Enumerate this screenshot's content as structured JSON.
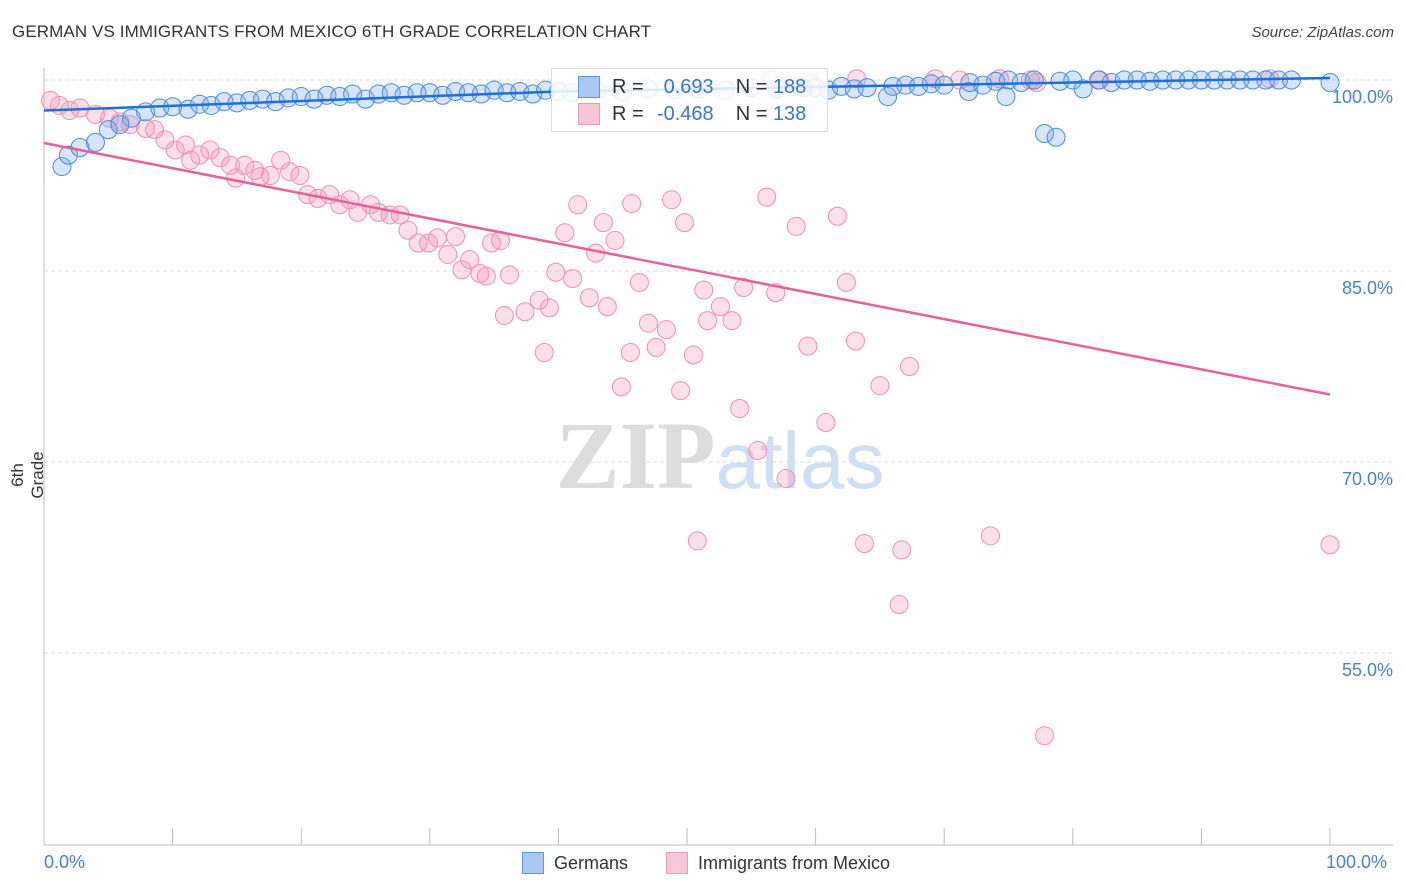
{
  "header": {
    "title": "GERMAN VS IMMIGRANTS FROM MEXICO 6TH GRADE CORRELATION CHART",
    "source": "Source: ZipAtlas.com"
  },
  "watermark": "ZIPatlas",
  "legend": {
    "rows": [
      {
        "r_label": "R =",
        "r": "0.693",
        "n_label": "N =",
        "n": "188"
      },
      {
        "r_label": "R =",
        "r": "-0.468",
        "n_label": "N =",
        "n": "138"
      }
    ]
  },
  "chart_data": {
    "type": "scatter",
    "title": "GERMAN VS IMMIGRANTS FROM MEXICO 6TH GRADE CORRELATION CHART",
    "xlabel": "",
    "ylabel": "6th Grade",
    "xlim": [
      0,
      100
    ],
    "ylim": [
      40,
      101.5
    ],
    "x_tick_labels": [
      "0.0%",
      "100.0%"
    ],
    "y_ticks": [
      100,
      85,
      70,
      55
    ],
    "y_tick_labels": [
      "100.0%",
      "85.0%",
      "70.0%",
      "55.0%"
    ],
    "grid": true,
    "legend_position": "bottom",
    "colors": {
      "Germans": "#4a8ae0",
      "Immigrants from Mexico": "#f08fb0",
      "blue_line": "#1f6fd6",
      "pink_line": "#e8609a",
      "tick_label": "#4a7fd6"
    },
    "series": [
      {
        "name": "Germans",
        "trend": [
          [
            0,
            97.6
          ],
          [
            40,
            99.1
          ],
          [
            100,
            100.6
          ]
        ],
        "points": [
          [
            1.4,
            93.2
          ],
          [
            1.9,
            94.1
          ],
          [
            2.8,
            94.7
          ],
          [
            4.0,
            95.1
          ],
          [
            5.0,
            96.1
          ],
          [
            5.9,
            96.5
          ],
          [
            6.8,
            97.0
          ],
          [
            7.9,
            97.5
          ],
          [
            9.0,
            97.8
          ],
          [
            10,
            97.9
          ],
          [
            11.2,
            97.7
          ],
          [
            12.1,
            98.1
          ],
          [
            13.0,
            98.0
          ],
          [
            14,
            98.3
          ],
          [
            15,
            98.2
          ],
          [
            16,
            98.4
          ],
          [
            17,
            98.5
          ],
          [
            18,
            98.3
          ],
          [
            19,
            98.6
          ],
          [
            20,
            98.7
          ],
          [
            21,
            98.5
          ],
          [
            22,
            98.8
          ],
          [
            23,
            98.7
          ],
          [
            24,
            98.9
          ],
          [
            25,
            98.5
          ],
          [
            26,
            98.9
          ],
          [
            27,
            99.0
          ],
          [
            28,
            98.8
          ],
          [
            29,
            99.0
          ],
          [
            30,
            99.0
          ],
          [
            31,
            98.8
          ],
          [
            32,
            99.1
          ],
          [
            33,
            99.0
          ],
          [
            34,
            98.9
          ],
          [
            35,
            99.2
          ],
          [
            36,
            99.0
          ],
          [
            37,
            99.1
          ],
          [
            38,
            98.9
          ],
          [
            39,
            99.2
          ],
          [
            40,
            99.1
          ],
          [
            41,
            99.0
          ],
          [
            43,
            99.2
          ],
          [
            45,
            99.1
          ],
          [
            47,
            99.3
          ],
          [
            49,
            99.2
          ],
          [
            51,
            99.3
          ],
          [
            53,
            99.2
          ],
          [
            55,
            99.4
          ],
          [
            57,
            99.3
          ],
          [
            59,
            99.4
          ],
          [
            60,
            99.4
          ],
          [
            61,
            99.2
          ],
          [
            62,
            99.5
          ],
          [
            63,
            99.3
          ],
          [
            64,
            99.4
          ],
          [
            65.6,
            98.7
          ],
          [
            66,
            99.5
          ],
          [
            67,
            99.6
          ],
          [
            68,
            99.5
          ],
          [
            69,
            99.7
          ],
          [
            70,
            99.6
          ],
          [
            71.9,
            99.1
          ],
          [
            72,
            99.8
          ],
          [
            73,
            99.6
          ],
          [
            74,
            99.9
          ],
          [
            74.8,
            98.7
          ],
          [
            75,
            100
          ],
          [
            76,
            99.8
          ],
          [
            77,
            100
          ],
          [
            77.8,
            95.8
          ],
          [
            78.7,
            95.5
          ],
          [
            79,
            99.9
          ],
          [
            80,
            100
          ],
          [
            80.8,
            99.3
          ],
          [
            82,
            100
          ],
          [
            83,
            99.8
          ],
          [
            84,
            100
          ],
          [
            85,
            100
          ],
          [
            86,
            99.9
          ],
          [
            87,
            100
          ],
          [
            88,
            100
          ],
          [
            89,
            100
          ],
          [
            90,
            100
          ],
          [
            91,
            100
          ],
          [
            92,
            100
          ],
          [
            93,
            100
          ],
          [
            94,
            100
          ],
          [
            95,
            100
          ],
          [
            96,
            100
          ],
          [
            97,
            100
          ],
          [
            100,
            99.8
          ]
        ]
      },
      {
        "name": "Immigrants from Mexico",
        "trend": [
          [
            0,
            95.05
          ],
          [
            100,
            75.3
          ]
        ],
        "points": [
          [
            0.5,
            98.4
          ],
          [
            1.2,
            98.0
          ],
          [
            2.0,
            97.6
          ],
          [
            2.8,
            97.8
          ],
          [
            4.0,
            97.3
          ],
          [
            5.1,
            97.0
          ],
          [
            5.9,
            96.7
          ],
          [
            6.7,
            96.5
          ],
          [
            7.9,
            96.2
          ],
          [
            8.6,
            96.1
          ],
          [
            9.4,
            95.3
          ],
          [
            10.2,
            94.5
          ],
          [
            11.0,
            94.9
          ],
          [
            11.4,
            93.7
          ],
          [
            12.1,
            94.1
          ],
          [
            12.9,
            94.5
          ],
          [
            13.7,
            93.9
          ],
          [
            14.5,
            93.3
          ],
          [
            14.9,
            92.3
          ],
          [
            15.6,
            93.3
          ],
          [
            16.4,
            92.9
          ],
          [
            16.8,
            92.4
          ],
          [
            17.6,
            92.5
          ],
          [
            18.4,
            93.7
          ],
          [
            19.1,
            92.8
          ],
          [
            19.9,
            92.5
          ],
          [
            20.5,
            91.0
          ],
          [
            21.3,
            90.7
          ],
          [
            22.2,
            91.0
          ],
          [
            23.0,
            90.2
          ],
          [
            23.8,
            90.6
          ],
          [
            24.4,
            89.6
          ],
          [
            25.4,
            90.2
          ],
          [
            26.0,
            89.6
          ],
          [
            26.9,
            89.4
          ],
          [
            27.7,
            89.4
          ],
          [
            28.3,
            88.2
          ],
          [
            29.1,
            87.2
          ],
          [
            29.9,
            87.2
          ],
          [
            30.6,
            87.6
          ],
          [
            31.4,
            86.3
          ],
          [
            32.0,
            87.7
          ],
          [
            32.5,
            85.1
          ],
          [
            33.1,
            85.9
          ],
          [
            33.9,
            84.8
          ],
          [
            34.4,
            84.6
          ],
          [
            34.8,
            87.2
          ],
          [
            35.5,
            87.4
          ],
          [
            36.2,
            84.7
          ],
          [
            41.5,
            90.2
          ],
          [
            45.7,
            90.3
          ],
          [
            48.8,
            90.6
          ],
          [
            56.2,
            90.8
          ],
          [
            61.7,
            89.3
          ],
          [
            49.8,
            88.8
          ],
          [
            58.5,
            88.5
          ],
          [
            43.5,
            88.8
          ],
          [
            40.5,
            88.0
          ],
          [
            44.4,
            87.4
          ],
          [
            42.9,
            86.4
          ],
          [
            39.8,
            84.9
          ],
          [
            41.1,
            84.4
          ],
          [
            46.3,
            84.1
          ],
          [
            42.4,
            82.9
          ],
          [
            43.8,
            82.2
          ],
          [
            37.4,
            81.8
          ],
          [
            35.8,
            81.5
          ],
          [
            38.5,
            82.7
          ],
          [
            39.3,
            82.1
          ],
          [
            51.3,
            83.5
          ],
          [
            54.4,
            83.7
          ],
          [
            56.9,
            83.3
          ],
          [
            62.4,
            84.1
          ],
          [
            52.6,
            82.2
          ],
          [
            51.6,
            81.1
          ],
          [
            53.5,
            81.1
          ],
          [
            47.0,
            80.9
          ],
          [
            48.4,
            80.4
          ],
          [
            59.4,
            79.1
          ],
          [
            63.1,
            79.5
          ],
          [
            45.6,
            78.6
          ],
          [
            47.6,
            79.0
          ],
          [
            38.9,
            78.6
          ],
          [
            50.5,
            78.4
          ],
          [
            67.3,
            77.5
          ],
          [
            65.0,
            76.0
          ],
          [
            44.9,
            75.9
          ],
          [
            49.5,
            75.6
          ],
          [
            54.1,
            74.2
          ],
          [
            60.8,
            73.1
          ],
          [
            55.5,
            70.9
          ],
          [
            57.7,
            68.7
          ],
          [
            50.8,
            63.8
          ],
          [
            63.8,
            63.6
          ],
          [
            66.7,
            63.1
          ],
          [
            73.6,
            64.2
          ],
          [
            66.5,
            58.8
          ],
          [
            77.8,
            48.5
          ],
          [
            100,
            63.5
          ],
          [
            56.5,
            100
          ],
          [
            59.6,
            99.8
          ],
          [
            63.2,
            100.1
          ],
          [
            69.3,
            100.1
          ],
          [
            71.2,
            100
          ],
          [
            74.3,
            100.1
          ],
          [
            76.7,
            100
          ],
          [
            77.2,
            99.8
          ],
          [
            82.1,
            100
          ],
          [
            95.3,
            100.1
          ]
        ]
      }
    ]
  },
  "bottom_legend": [
    "Germans",
    "Immigrants from Mexico"
  ]
}
